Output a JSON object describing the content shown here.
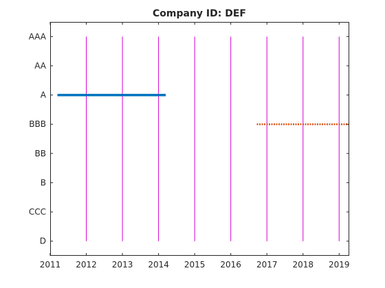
{
  "chart_data": {
    "type": "line",
    "title": "Company ID: DEF",
    "xlabel": "",
    "ylabel": "",
    "xlim": [
      2011,
      2019.28
    ],
    "x_ticks": [
      2011,
      2012,
      2013,
      2014,
      2015,
      2016,
      2017,
      2018,
      2019
    ],
    "x_tick_labels": [
      "2011",
      "2012",
      "2013",
      "2014",
      "2015",
      "2016",
      "2017",
      "2018",
      "2019"
    ],
    "y_categories": [
      "D",
      "CCC",
      "B",
      "BB",
      "BBB",
      "A",
      "AA",
      "AAA"
    ],
    "ylim": [
      -0.5,
      7.5
    ],
    "grid": false,
    "vertical_lines": {
      "x": [
        2012,
        2013,
        2014,
        2015,
        2016,
        2017,
        2018,
        2019
      ],
      "y_range": [
        0,
        7
      ],
      "color": "#d400d4"
    },
    "series": [
      {
        "rating": "A",
        "x": [
          2011.2,
          2014.2
        ],
        "style": "solid",
        "color": "#0072bd"
      },
      {
        "rating": "BBB",
        "x": [
          2016.72,
          2019.28
        ],
        "style": "dotted",
        "color": "#d95319"
      }
    ]
  }
}
